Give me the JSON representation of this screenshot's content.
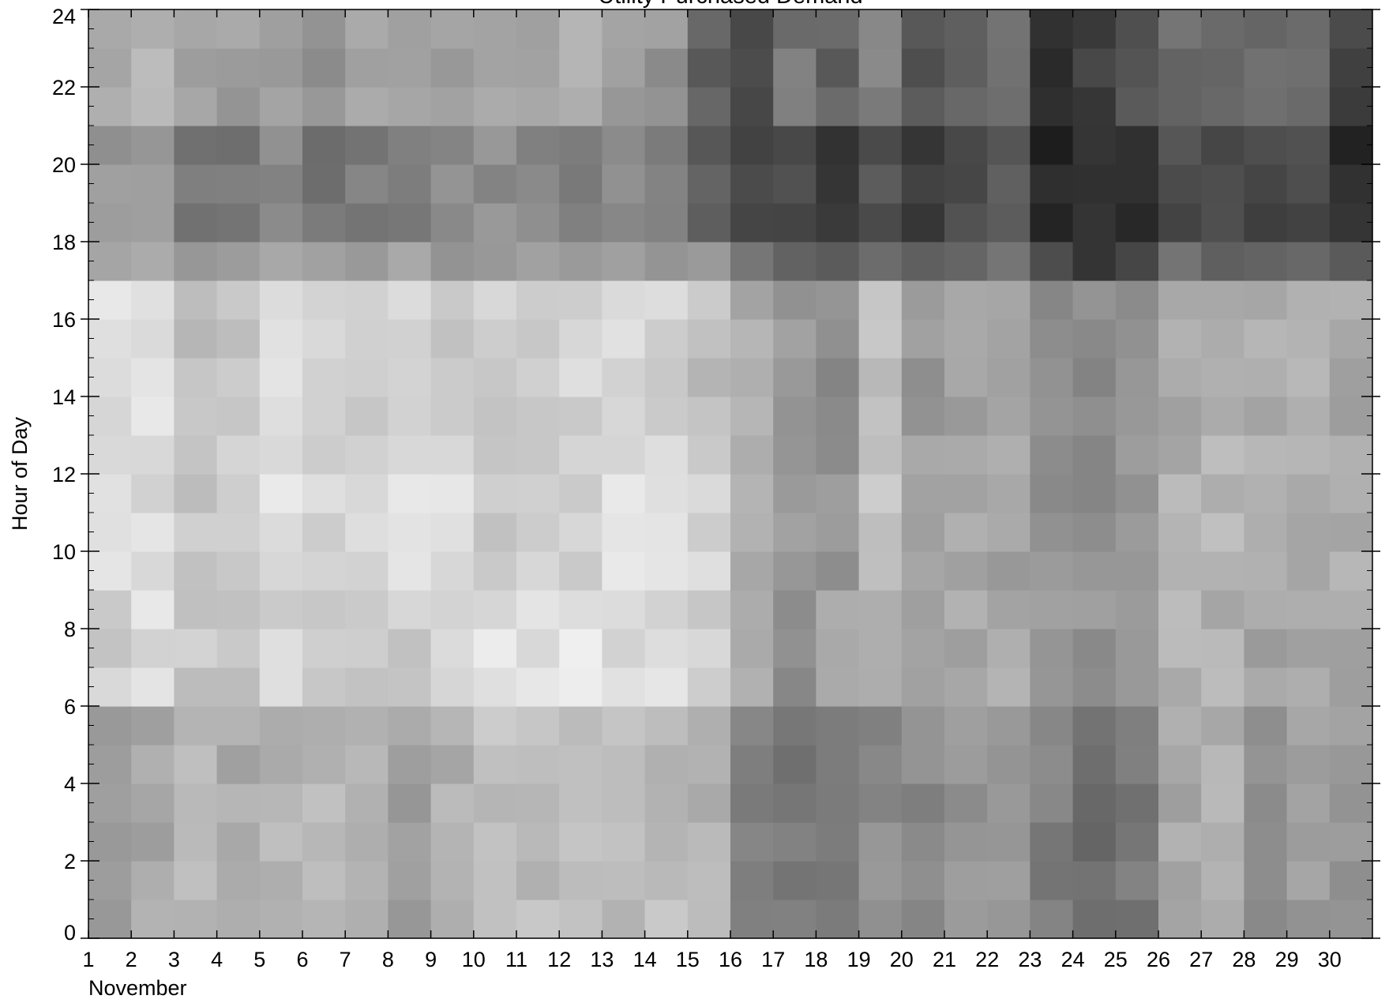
{
  "chart_data": {
    "type": "heatmap",
    "colormap": "grayscale (lighter = lower, darker = higher)",
    "title": "Utility Purchased Demand",
    "xlabel": "November",
    "ylabel": "Hour of Day",
    "xlim": [
      1,
      31
    ],
    "ylim": [
      0,
      24
    ],
    "x_ticks": [
      "1",
      "2",
      "3",
      "4",
      "5",
      "6",
      "7",
      "8",
      "9",
      "10",
      "11",
      "12",
      "13",
      "14",
      "15",
      "16",
      "17",
      "18",
      "19",
      "20",
      "21",
      "22",
      "23",
      "24",
      "25",
      "26",
      "27",
      "28",
      "29",
      "30"
    ],
    "y_ticks": [
      "0",
      "2",
      "4",
      "6",
      "8",
      "10",
      "12",
      "14",
      "16",
      "18",
      "20",
      "22",
      "24"
    ],
    "x": [
      1,
      2,
      3,
      4,
      5,
      6,
      7,
      8,
      9,
      10,
      11,
      12,
      13,
      14,
      15,
      16,
      17,
      18,
      19,
      20,
      21,
      22,
      23,
      24,
      25,
      26,
      27,
      28,
      29,
      30
    ],
    "y_bands": [
      {
        "hours": [
          0,
          6.25
        ],
        "gray": [
          165,
          168,
          190,
          172,
          180,
          182,
          172,
          160,
          178,
          192,
          188,
          186,
          186,
          188,
          180,
          130,
          118,
          125,
          140,
          138,
          148,
          150,
          128,
          112,
          120,
          168,
          172,
          150,
          155,
          150
        ]
      },
      {
        "hours": [
          6.25,
          9
        ],
        "gray": [
          205,
          220,
          200,
          200,
          215,
          210,
          200,
          205,
          210,
          225,
          225,
          228,
          220,
          220,
          205,
          168,
          140,
          160,
          168,
          150,
          165,
          170,
          158,
          148,
          150,
          180,
          178,
          162,
          165,
          165
        ]
      },
      {
        "hours": [
          9,
          13
        ],
        "gray": [
          218,
          222,
          195,
          200,
          225,
          210,
          215,
          228,
          218,
          205,
          208,
          206,
          225,
          220,
          210,
          170,
          155,
          150,
          198,
          160,
          170,
          165,
          150,
          145,
          152,
          175,
          180,
          175,
          175,
          172
        ]
      },
      {
        "hours": [
          13,
          17
        ],
        "gray": [
          220,
          228,
          188,
          198,
          225,
          210,
          205,
          220,
          205,
          205,
          208,
          212,
          222,
          210,
          192,
          170,
          155,
          140,
          188,
          155,
          165,
          160,
          140,
          140,
          148,
          170,
          175,
          172,
          178,
          170
        ]
      },
      {
        "hours": [
          17,
          18.5
        ],
        "gray": [
          160,
          168,
          142,
          145,
          155,
          148,
          145,
          160,
          155,
          150,
          150,
          155,
          158,
          148,
          142,
          105,
          98,
          90,
          120,
          88,
          105,
          108,
          70,
          62,
          68,
          110,
          108,
          100,
          102,
          92
        ]
      },
      {
        "hours": [
          18.5,
          21.5
        ],
        "gray": [
          150,
          160,
          118,
          122,
          138,
          120,
          125,
          130,
          138,
          142,
          138,
          130,
          135,
          130,
          95,
          62,
          78,
          60,
          85,
          62,
          70,
          85,
          35,
          40,
          45,
          75,
          70,
          68,
          72,
          42
        ]
      },
      {
        "hours": [
          21.5,
          24
        ],
        "gray": [
          170,
          178,
          160,
          158,
          165,
          150,
          160,
          168,
          160,
          165,
          172,
          172,
          162,
          150,
          100,
          80,
          118,
          100,
          130,
          85,
          100,
          112,
          55,
          60,
          85,
          108,
          100,
          105,
          105,
          65
        ]
      }
    ]
  }
}
